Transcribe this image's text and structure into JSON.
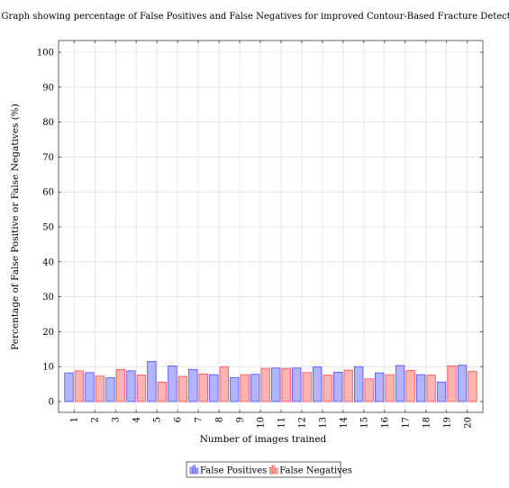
{
  "chart_data": {
    "type": "bar",
    "title": "Graph showing percentage of False Positives and False Negatives for improved Contour-Based Fracture Detection",
    "xlabel": "Number of images trained",
    "ylabel": "Percentage of False Positive or False Negatives (%)",
    "ylim": [
      0,
      100
    ],
    "yticks": [
      0,
      10,
      20,
      30,
      40,
      50,
      60,
      70,
      80,
      90,
      100
    ],
    "grid": true,
    "legend_position": "bottom-center",
    "categories": [
      "1",
      "2",
      "3",
      "4",
      "5",
      "6",
      "7",
      "8",
      "9",
      "10",
      "11",
      "12",
      "13",
      "14",
      "15",
      "16",
      "17",
      "18",
      "19",
      "20"
    ],
    "series": [
      {
        "name": "False Positives",
        "fill": "#b3b3ff",
        "stroke": "#4d4dff",
        "values": [
          8.2,
          8.3,
          6.8,
          8.8,
          11.5,
          10.2,
          9.2,
          7.7,
          6.9,
          7.8,
          9.6,
          9.6,
          9.9,
          8.4,
          10.0,
          8.2,
          10.3,
          7.7,
          5.6,
          10.4
        ]
      },
      {
        "name": "False Negatives",
        "fill": "#ffb3b3",
        "stroke": "#ff4d4d",
        "values": [
          8.8,
          7.3,
          9.2,
          7.6,
          5.6,
          7.2,
          7.9,
          9.9,
          7.7,
          9.5,
          9.5,
          8.3,
          7.6,
          9.0,
          6.5,
          7.7,
          8.9,
          7.6,
          10.2,
          8.6
        ]
      }
    ]
  }
}
